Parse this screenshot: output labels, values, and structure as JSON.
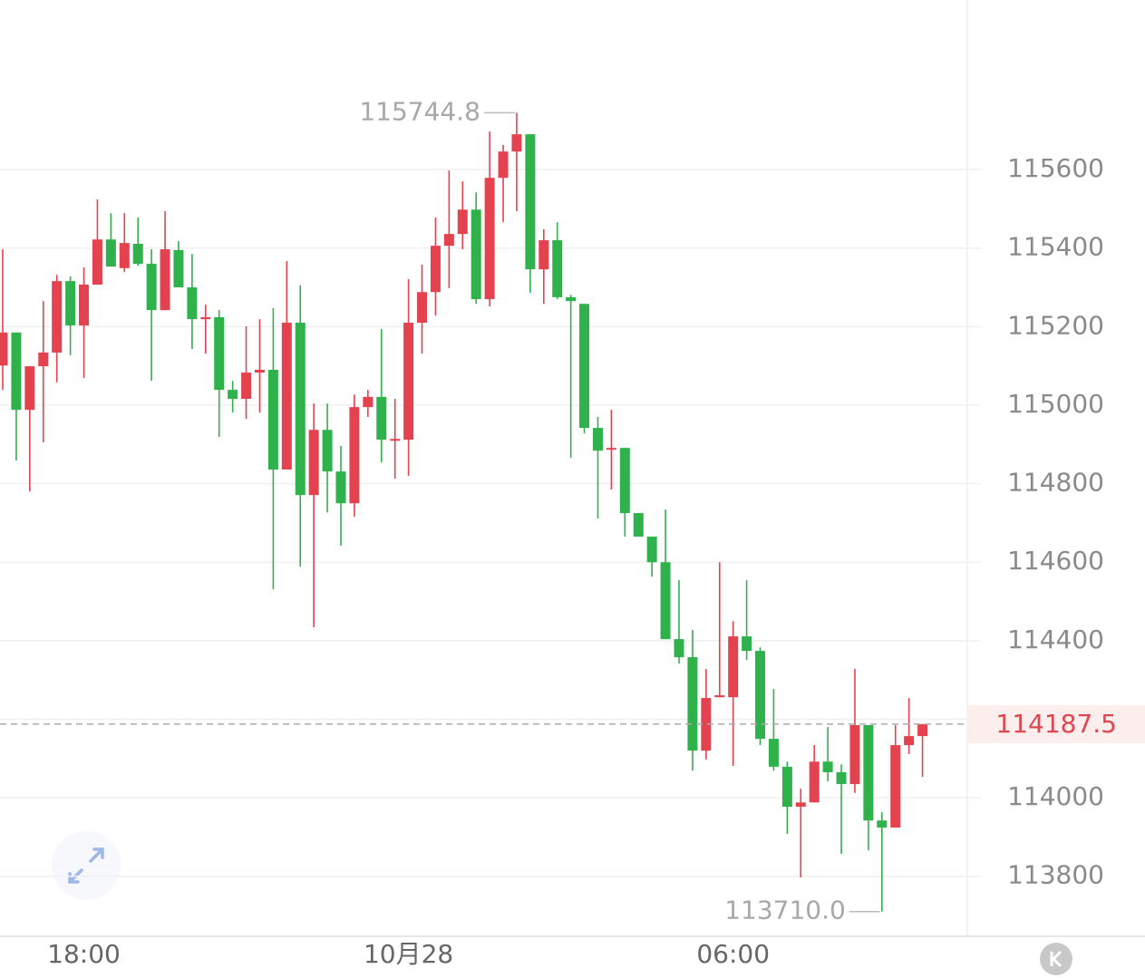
{
  "chart_data": {
    "type": "candlestick",
    "up_color": "#e5424f",
    "down_color": "#2fb24c",
    "categories": [
      null,
      null,
      null,
      null,
      null,
      null,
      "18:00",
      null,
      null,
      null,
      null,
      null,
      null,
      null,
      null,
      null,
      null,
      null,
      null,
      null,
      null,
      null,
      null,
      null,
      null,
      null,
      null,
      null,
      null,
      null,
      "10月28",
      null,
      null,
      null,
      null,
      null,
      null,
      null,
      null,
      null,
      null,
      null,
      null,
      null,
      null,
      null,
      null,
      null,
      null,
      null,
      null,
      null,
      null,
      null,
      "06:00",
      null,
      null,
      null,
      null,
      null,
      null,
      null,
      null,
      null,
      null,
      null,
      null,
      null,
      null
    ],
    "open": [
      115101,
      115185,
      114988,
      115099,
      115134,
      115316,
      115203,
      115307,
      115422,
      115349,
      115411,
      115360,
      115242,
      115395,
      115300,
      115219,
      115224,
      115039,
      115016,
      115083,
      115090,
      114836,
      115210,
      114771,
      114937,
      114831,
      114750,
      114995,
      115021,
      114910,
      114912,
      115210,
      115288,
      115406,
      115436,
      115498,
      115270,
      115579,
      115646,
      115690,
      115346,
      115420,
      115275,
      115258,
      114942,
      114887,
      114891,
      114725,
      114665,
      114600,
      114404,
      114358,
      114120,
      114256,
      114256,
      114411,
      114374,
      114150,
      114079,
      113977,
      113988,
      114092,
      114065,
      114035,
      114185,
      113942,
      113924,
      114134,
      114157
    ],
    "high": [
      115397,
      115185,
      115099,
      115265,
      115332,
      115328,
      115351,
      115524,
      115489,
      115489,
      115478,
      115397,
      115494,
      115418,
      115385,
      115256,
      115242,
      115062,
      115201,
      115219,
      115247,
      115367,
      115305,
      115004,
      115004,
      114896,
      115027,
      115039,
      115194,
      115016,
      115321,
      115358,
      115478,
      115598,
      115570,
      115542,
      115697,
      115663,
      115744.8,
      115690,
      115448,
      115466,
      115281,
      115258,
      114970,
      114988,
      114891,
      114725,
      114665,
      114734,
      114554,
      114427,
      114328,
      114600,
      114450,
      114554,
      114383,
      114277,
      114092,
      114023,
      114134,
      114180,
      114085,
      114328,
      114185,
      113963,
      114185,
      114254,
      114187.5
    ],
    "low": [
      115039,
      114859,
      114780,
      114905,
      115058,
      115127,
      115069,
      115307,
      115353,
      115339,
      115355,
      115062,
      115242,
      115300,
      115143,
      115131,
      114919,
      114981,
      114965,
      114981,
      114531,
      114836,
      114589,
      114434,
      114727,
      114642,
      114716,
      114970,
      114854,
      114813,
      114820,
      115131,
      115228,
      115298,
      115397,
      115258,
      115252,
      115466,
      115494,
      115286,
      115258,
      115270,
      114866,
      114928,
      114711,
      114785,
      114665,
      114665,
      114563,
      114404,
      114342,
      114069,
      114097,
      114256,
      114081,
      114351,
      114134,
      114069,
      113908,
      113797,
      113988,
      114042,
      113857,
      114012,
      113866,
      113710,
      113924,
      114111,
      114053
    ],
    "close": [
      115185,
      114988,
      115099,
      115134,
      115316,
      115203,
      115307,
      115422,
      115353,
      115413,
      115360,
      115242,
      115397,
      115300,
      115219,
      115224,
      115039,
      115016,
      115083,
      115090,
      114836,
      115210,
      114771,
      114937,
      114831,
      114750,
      114995,
      115021,
      114912,
      114914,
      115210,
      115288,
      115406,
      115436,
      115498,
      115270,
      115579,
      115646,
      115690,
      115346,
      115420,
      115275,
      115265,
      114942,
      114884,
      114891,
      114725,
      114665,
      114600,
      114404,
      114358,
      114120,
      114254,
      114261,
      114411,
      114374,
      114150,
      114079,
      113977,
      113988,
      114092,
      114065,
      114035,
      114185,
      113942,
      113924,
      114134,
      114157,
      114187.5
    ],
    "low_label": "113710.0",
    "last_price": 114187.5,
    "ylim": [
      113647,
      116032
    ],
    "yticks": [
      113800,
      114000,
      114200,
      114400,
      114600,
      114800,
      115000,
      115200,
      115400,
      115600
    ],
    "yticks_labeled": [
      113800,
      114000,
      114400,
      114600,
      114800,
      115000,
      115200,
      115400,
      115600
    ],
    "grid": true
  }
}
